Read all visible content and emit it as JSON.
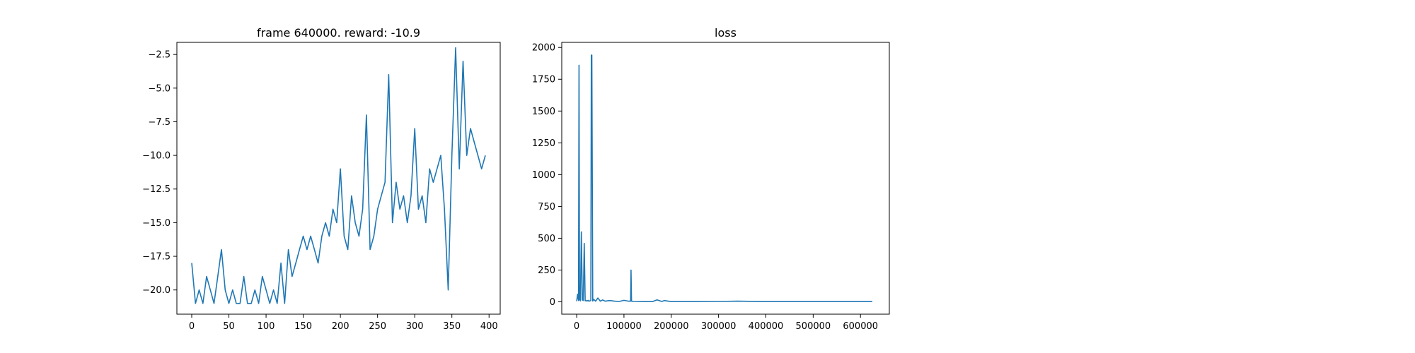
{
  "chart_data": [
    {
      "type": "line",
      "title": "frame 640000. reward: -10.9",
      "xlabel": "",
      "ylabel": "",
      "xlim": [
        -20,
        415
      ],
      "ylim": [
        -21.8,
        -1.6
      ],
      "xticks": [
        0,
        50,
        100,
        150,
        200,
        250,
        300,
        350,
        400
      ],
      "xtick_labels": [
        "0",
        "50",
        "100",
        "150",
        "200",
        "250",
        "300",
        "350",
        "400"
      ],
      "yticks": [
        -20.0,
        -17.5,
        -15.0,
        -12.5,
        -10.0,
        -7.5,
        -5.0,
        -2.5
      ],
      "ytick_labels": [
        "−20.0",
        "−17.5",
        "−15.0",
        "−12.5",
        "−10.0",
        "−7.5",
        "−5.0",
        "−2.5"
      ],
      "grid": false,
      "series": [
        {
          "color": "#1f77b4",
          "x": [
            0,
            5,
            10,
            15,
            20,
            25,
            30,
            35,
            40,
            45,
            50,
            55,
            60,
            65,
            70,
            75,
            80,
            85,
            90,
            95,
            100,
            105,
            110,
            115,
            120,
            125,
            130,
            135,
            140,
            145,
            150,
            155,
            160,
            165,
            170,
            175,
            180,
            185,
            190,
            195,
            200,
            205,
            210,
            215,
            220,
            225,
            230,
            235,
            240,
            245,
            250,
            255,
            260,
            265,
            270,
            275,
            280,
            285,
            290,
            295,
            300,
            305,
            310,
            315,
            320,
            325,
            330,
            335,
            340,
            345,
            350,
            355,
            360,
            365,
            370,
            375,
            380,
            385,
            390,
            395
          ],
          "y": [
            -18,
            -21,
            -20,
            -21,
            -19,
            -20,
            -21,
            -19,
            -17,
            -20,
            -21,
            -20,
            -21,
            -21,
            -19,
            -21,
            -21,
            -20,
            -21,
            -19,
            -20,
            -21,
            -20,
            -21,
            -18,
            -21,
            -17,
            -19,
            -18,
            -17,
            -16,
            -17,
            -16,
            -17,
            -18,
            -16,
            -15,
            -16,
            -14,
            -15,
            -11,
            -16,
            -17,
            -13,
            -15,
            -16,
            -14,
            -7,
            -17,
            -16,
            -14,
            -13,
            -12,
            -4,
            -15,
            -12,
            -14,
            -13,
            -15,
            -13,
            -8,
            -14,
            -13,
            -15,
            -11,
            -12,
            -11,
            -10,
            -14,
            -20,
            -10,
            -2,
            -11,
            -3,
            -10,
            -8,
            -9,
            -10,
            -11,
            -10
          ]
        }
      ]
    },
    {
      "type": "line",
      "title": "loss",
      "xlabel": "",
      "ylabel": "",
      "xlim": [
        -31500,
        661000
      ],
      "ylim": [
        -97,
        2040
      ],
      "xticks": [
        0,
        100000,
        200000,
        300000,
        400000,
        500000,
        600000
      ],
      "xtick_labels": [
        "0",
        "100000",
        "200000",
        "300000",
        "400000",
        "500000",
        "600000"
      ],
      "yticks": [
        0,
        250,
        500,
        750,
        1000,
        1250,
        1500,
        1750,
        2000
      ],
      "ytick_labels": [
        "0",
        "250",
        "500",
        "750",
        "1000",
        "1250",
        "1500",
        "1750",
        "2000"
      ],
      "grid": false,
      "series": [
        {
          "color": "#1f77b4",
          "x": [
            0,
            2000,
            4000,
            5000,
            6000,
            8000,
            10000,
            12000,
            14000,
            16000,
            18000,
            20000,
            22000,
            24000,
            26000,
            28000,
            30000,
            31000,
            32000,
            34000,
            36000,
            40000,
            45000,
            50000,
            55000,
            60000,
            70000,
            80000,
            90000,
            100000,
            110000,
            114000,
            115000,
            116000,
            120000,
            140000,
            160000,
            170000,
            180000,
            185000,
            200000,
            250000,
            300000,
            340000,
            400000,
            500000,
            600000,
            625000
          ],
          "y": [
            5,
            60,
            10,
            1860,
            20,
            8,
            550,
            15,
            10,
            460,
            8,
            10,
            6,
            12,
            5,
            8,
            10,
            1940,
            1940,
            6,
            20,
            5,
            30,
            5,
            15,
            5,
            10,
            5,
            3,
            12,
            5,
            5,
            250,
            5,
            3,
            2,
            2,
            15,
            3,
            10,
            2,
            2,
            3,
            5,
            2,
            2,
            2,
            2
          ]
        }
      ]
    }
  ]
}
